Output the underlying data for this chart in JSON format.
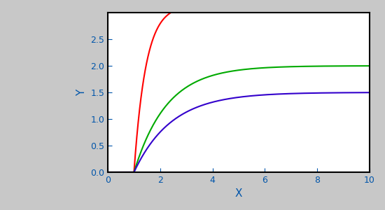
{
  "xlabel": "X",
  "ylabel": "Y",
  "xlim": [
    0,
    10
  ],
  "ylim": [
    0,
    3.0
  ],
  "yticks": [
    0,
    0.5,
    1.0,
    1.5,
    2.0,
    2.5
  ],
  "xticks": [
    0,
    2,
    4,
    6,
    8,
    10
  ],
  "curves": [
    {
      "color": "#ff0000",
      "A": 3.14159,
      "k": 2.2
    },
    {
      "color": "#00aa00",
      "A": 2.0,
      "k": 0.8
    },
    {
      "color": "#3300cc",
      "A": 1.5,
      "k": 0.7
    }
  ],
  "background_color": "#ffffff",
  "figure_bg": "#c8c8c8",
  "linewidth": 1.5,
  "tick_color": "#0055aa",
  "label_color": "#0055aa",
  "label_fontsize": 11
}
